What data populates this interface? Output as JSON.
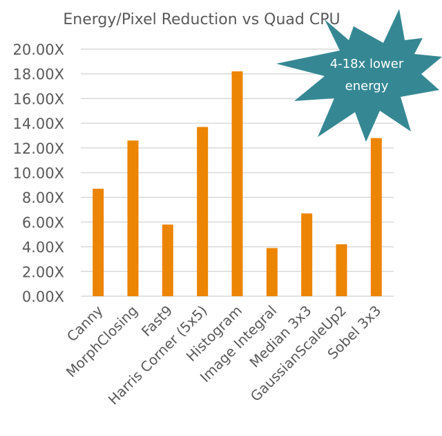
{
  "chart_data": {
    "type": "bar",
    "title": "Energy/Pixel Reduction vs Quad CPU",
    "xlabel": "",
    "ylabel": "",
    "categories": [
      "Canny",
      "MorphClosing",
      "Fast9",
      "Harris Corner (5x5)",
      "Histogram",
      "Image Integral",
      "Median 3x3",
      "GaussianScaleUp2",
      "Sobel 3x3"
    ],
    "values": [
      8.7,
      12.6,
      5.8,
      13.7,
      18.2,
      3.9,
      6.7,
      4.2,
      12.8
    ],
    "ylim": [
      0,
      20
    ],
    "yticks": [
      0,
      2,
      4,
      6,
      8,
      10,
      12,
      14,
      16,
      18,
      20
    ],
    "ytick_labels": [
      "0.00X",
      "2.00X",
      "4.00X",
      "6.00X",
      "8.00X",
      "10.00X",
      "12.00X",
      "14.00X",
      "16.00X",
      "18.00X",
      "20.00X"
    ],
    "grid": true,
    "legend": "none",
    "bar_color": "#ec8404",
    "annotations": [
      {
        "type": "starburst",
        "lines": [
          "4-18x lower",
          "energy"
        ],
        "color": "#358893",
        "position": "top-right"
      }
    ]
  }
}
